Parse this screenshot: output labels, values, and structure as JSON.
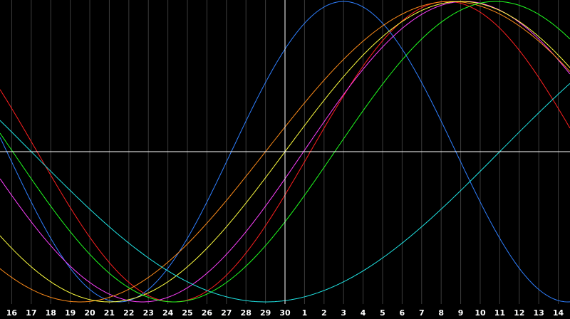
{
  "chart_data": {
    "type": "line",
    "x_tick_labels": [
      "16",
      "17",
      "18",
      "19",
      "20",
      "21",
      "22",
      "23",
      "24",
      "25",
      "26",
      "27",
      "28",
      "29",
      "30",
      "1",
      "2",
      "3",
      "4",
      "5",
      "6",
      "7",
      "8",
      "9",
      "10",
      "11",
      "12",
      "13",
      "14"
    ],
    "x_range": [
      15.4,
      44.6
    ],
    "y_range": [
      -1,
      1
    ],
    "crosshair": {
      "x_day": 30,
      "y_value": 0
    },
    "grid": true,
    "colors": {
      "background": "#000000",
      "grid": "#3c3c3c",
      "crosshair": "#ffffff",
      "tick_text": "#ffffff"
    },
    "series": [
      {
        "color": "#ff2020",
        "period": 28,
        "peak_day": 38.3
      },
      {
        "color": "#2f7fff",
        "period": 23,
        "peak_day": 33.0
      },
      {
        "color": "#ff40ff",
        "period": 33,
        "peak_day": 39.2
      },
      {
        "color": "#ff8c1a",
        "period": 38,
        "peak_day": 38.5
      },
      {
        "color": "#ffff40",
        "period": 36,
        "peak_day": 39.0
      },
      {
        "color": "#20ff20",
        "period": 33,
        "peak_day": 40.8
      },
      {
        "color": "#20e6e6",
        "period": 48,
        "peak_day": 53.0
      }
    ]
  }
}
